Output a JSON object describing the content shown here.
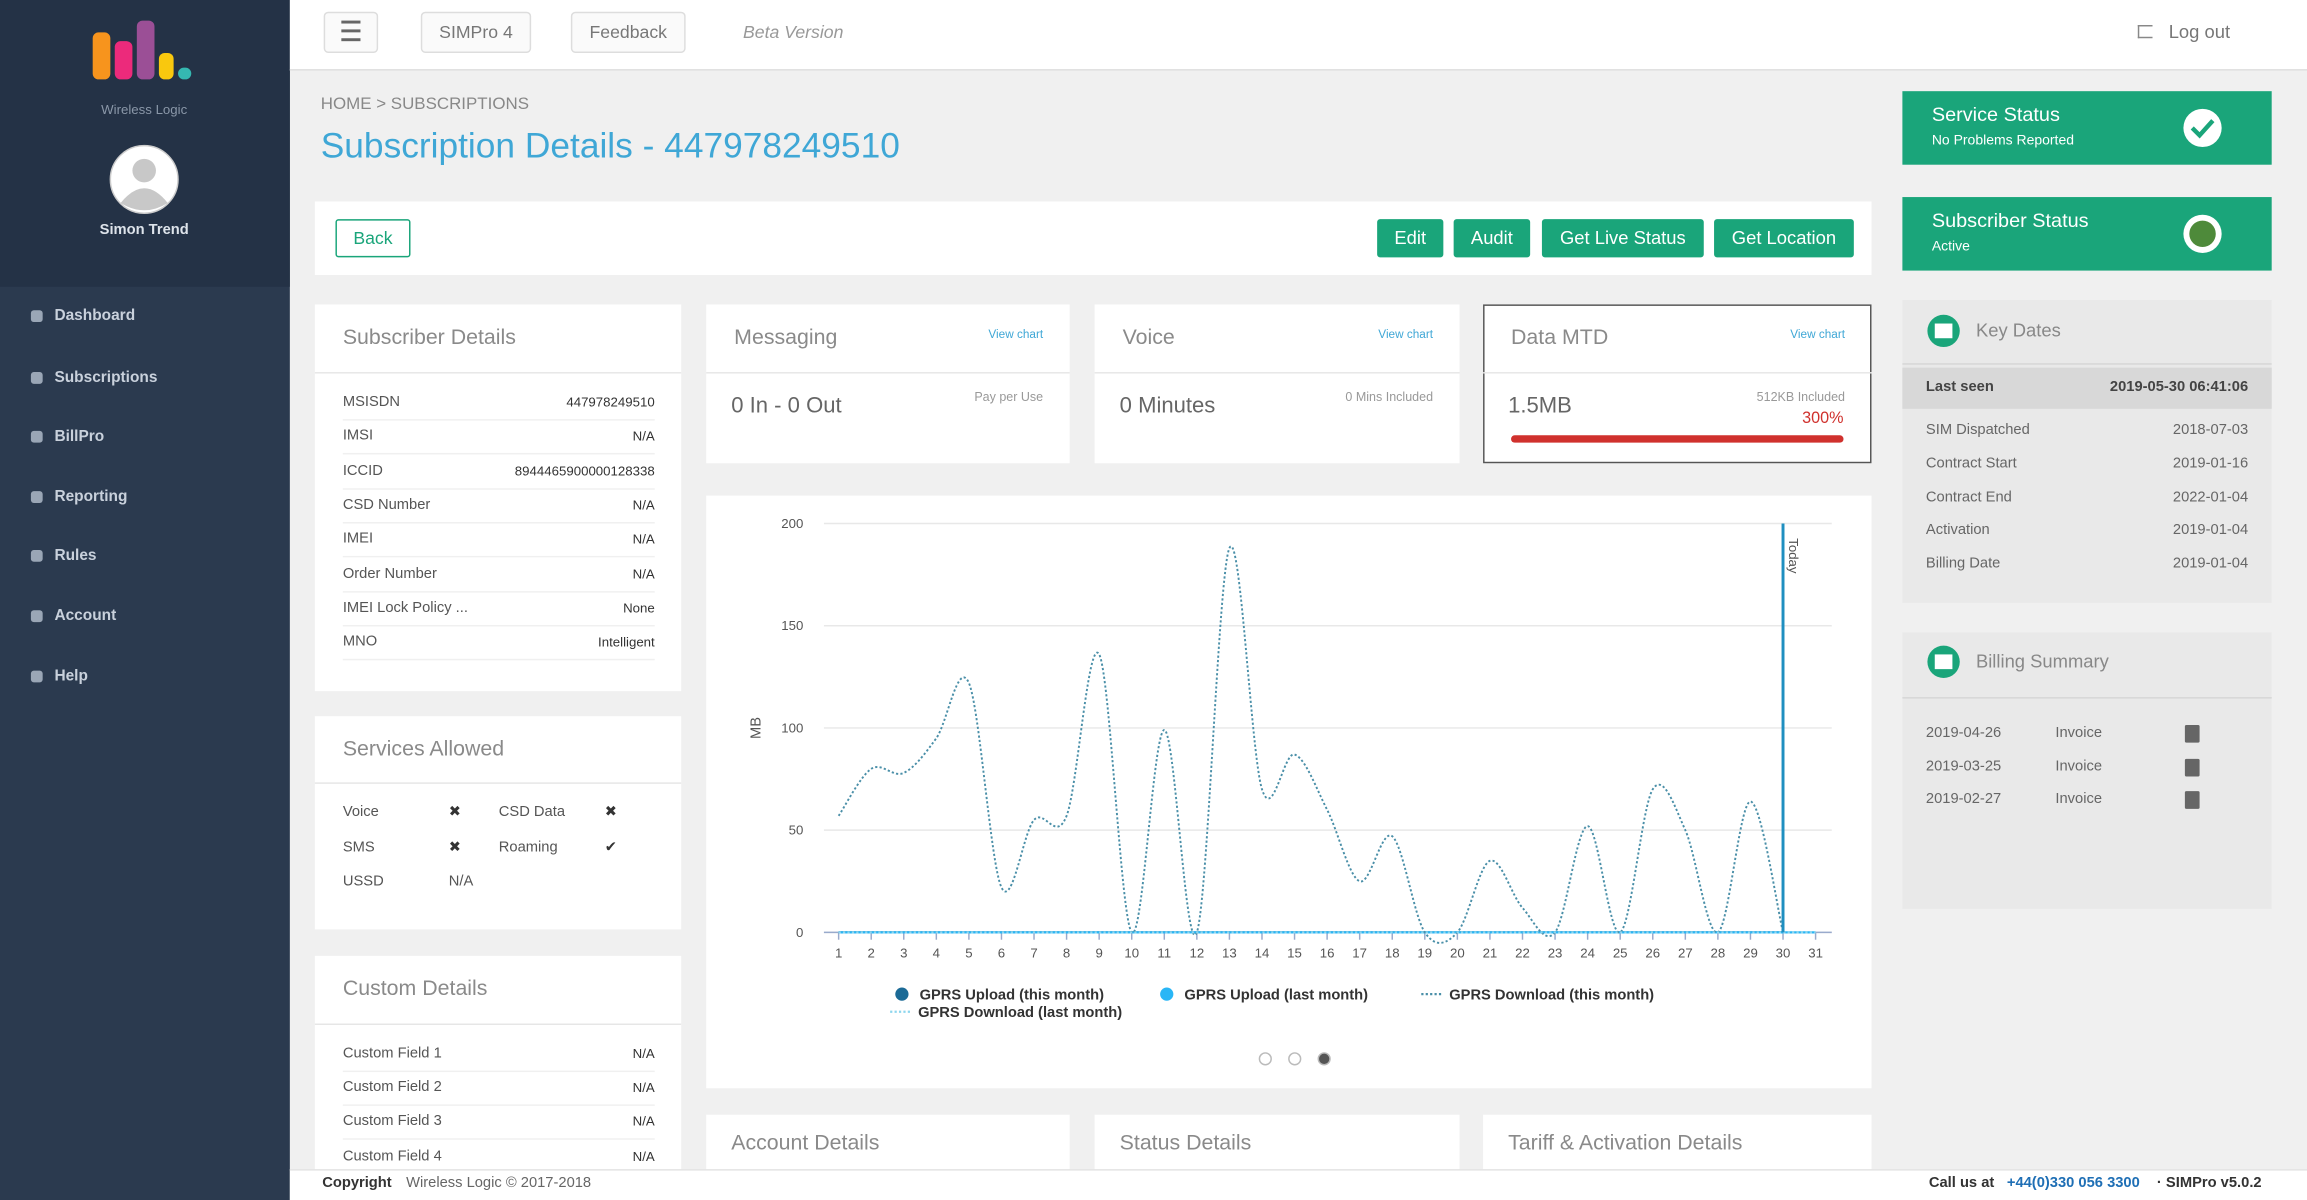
{
  "sidebar": {
    "brand": "Wireless Logic",
    "user": "Simon Trend",
    "nav": [
      "Dashboard",
      "Subscriptions",
      "BillPro",
      "Reporting",
      "Rules",
      "Account",
      "Help"
    ]
  },
  "topbar": {
    "buttons": [
      "SIMPro 4",
      "Feedback"
    ],
    "beta": "Beta Version",
    "logout": "Log out"
  },
  "breadcrumb": "HOME > SUBSCRIPTIONS",
  "page_title": "Subscription Details - 447978249510",
  "actions": {
    "back": "Back",
    "buttons": [
      "Edit",
      "Audit",
      "Get Live Status",
      "Get Location"
    ]
  },
  "subscriber_details": {
    "title": "Subscriber Details",
    "rows": [
      [
        "MSISDN",
        "447978249510"
      ],
      [
        "IMSI",
        "N/A"
      ],
      [
        "ICCID",
        "8944465900000128338"
      ],
      [
        "CSD Number",
        "N/A"
      ],
      [
        "IMEI",
        "N/A"
      ],
      [
        "Order Number",
        "N/A"
      ],
      [
        "IMEI Lock Policy ...",
        "None"
      ],
      [
        "MNO",
        "Intelligent"
      ]
    ]
  },
  "services_allowed": {
    "title": "Services Allowed",
    "rows": [
      [
        "Voice",
        "✖",
        "CSD Data",
        "✖"
      ],
      [
        "SMS",
        "✖",
        "Roaming",
        "✔"
      ],
      [
        "USSD",
        "N/A"
      ]
    ]
  },
  "custom_details": {
    "title": "Custom Details",
    "rows": [
      [
        "Custom Field 1",
        "N/A"
      ],
      [
        "Custom Field 2",
        "N/A"
      ],
      [
        "Custom Field 3",
        "N/A"
      ],
      [
        "Custom Field 4",
        "N/A"
      ]
    ]
  },
  "messaging": {
    "title": "Messaging",
    "link": "View chart",
    "value": "0 In - 0 Out",
    "note": "Pay per Use"
  },
  "voice": {
    "title": "Voice",
    "link": "View chart",
    "value": "0 Minutes",
    "note": "0 Mins Included"
  },
  "data_mtd": {
    "title": "Data MTD",
    "link": "View chart",
    "value": "1.5MB",
    "note": "512KB Included",
    "percent": "300%"
  },
  "chart_data": {
    "type": "line",
    "y_label": "MB",
    "x": [
      1,
      2,
      3,
      4,
      5,
      6,
      7,
      8,
      9,
      10,
      11,
      12,
      13,
      14,
      15,
      16,
      17,
      18,
      19,
      20,
      21,
      22,
      23,
      24,
      25,
      26,
      27,
      28,
      29,
      30,
      31
    ],
    "xlim": [
      1,
      31
    ],
    "xticks": [
      1,
      2,
      3,
      4,
      5,
      6,
      7,
      8,
      9,
      10,
      11,
      12,
      13,
      14,
      15,
      16,
      17,
      18,
      19,
      20,
      21,
      22,
      23,
      24,
      25,
      26,
      27,
      28,
      29,
      30,
      31
    ],
    "ylim": [
      0,
      200
    ],
    "yticks": [
      0,
      50,
      100,
      150,
      200
    ],
    "grid": true,
    "annotations": [
      {
        "text": "Today",
        "x": 30
      }
    ],
    "series": [
      {
        "name": "GPRS Upload (this month)",
        "color": "#1b6a96",
        "marker": "circle",
        "line_style": "solid",
        "values": [
          0,
          0,
          0,
          0,
          0,
          0,
          0,
          0,
          0,
          0,
          0,
          0,
          0,
          0,
          0,
          0,
          0,
          0,
          0,
          0,
          0,
          0,
          0,
          0,
          0,
          0,
          0,
          0,
          0,
          0,
          null
        ]
      },
      {
        "name": "GPRS Upload (last month)",
        "color": "#29b6f6",
        "marker": "circle",
        "line_style": "solid",
        "values": [
          0,
          0,
          0,
          0,
          0,
          0,
          0,
          0,
          0,
          0,
          0,
          0,
          0,
          0,
          0,
          0,
          0,
          0,
          0,
          0,
          0,
          0,
          0,
          0,
          0,
          0,
          0,
          0,
          0,
          0,
          0
        ]
      },
      {
        "name": "GPRS Download (this month)",
        "color": "#4a8fa8",
        "marker": "line",
        "line_style": "dotted",
        "values": [
          57,
          80,
          78,
          95,
          122,
          22,
          55,
          57,
          136,
          0,
          99,
          0,
          188,
          70,
          87,
          60,
          25,
          47,
          0,
          0,
          35,
          12,
          0,
          52,
          0,
          70,
          50,
          0,
          64,
          0,
          null
        ]
      },
      {
        "name": "GPRS Download (last month)",
        "color": "#8dd6ee",
        "marker": "line",
        "line_style": "dotted",
        "values": [
          0,
          0,
          0,
          0,
          0,
          0,
          0,
          0,
          0,
          0,
          0,
          0,
          0,
          0,
          0,
          0,
          0,
          0,
          0,
          0,
          0,
          0,
          0,
          0,
          0,
          0,
          0,
          0,
          0,
          0,
          0
        ]
      }
    ]
  },
  "bottom_panels": [
    "Account Details",
    "Status Details",
    "Tariff & Activation Details"
  ],
  "service_status": {
    "title": "Service Status",
    "subtitle": "No Problems Reported"
  },
  "subscriber_status": {
    "title": "Subscriber Status",
    "subtitle": "Active"
  },
  "key_dates": {
    "title": "Key Dates",
    "rows": [
      [
        "Last seen",
        "2019-05-30 06:41:06"
      ],
      [
        "SIM Dispatched",
        "2018-07-03"
      ],
      [
        "Contract Start",
        "2019-01-16"
      ],
      [
        "Contract End",
        "2022-01-04"
      ],
      [
        "Activation",
        "2019-01-04"
      ],
      [
        "Billing Date",
        "2019-01-04"
      ]
    ]
  },
  "billing_summary": {
    "title": "Billing Summary",
    "rows": [
      [
        "2019-04-26",
        "Invoice"
      ],
      [
        "2019-03-25",
        "Invoice"
      ],
      [
        "2019-02-27",
        "Invoice"
      ]
    ]
  },
  "footer": {
    "copyright": "Copyright",
    "company": "Wireless Logic © 2017-2018",
    "call": "Call us at",
    "phone": "+44(0)330 056 3300",
    "product": "· SIMPro v5.0.2"
  }
}
